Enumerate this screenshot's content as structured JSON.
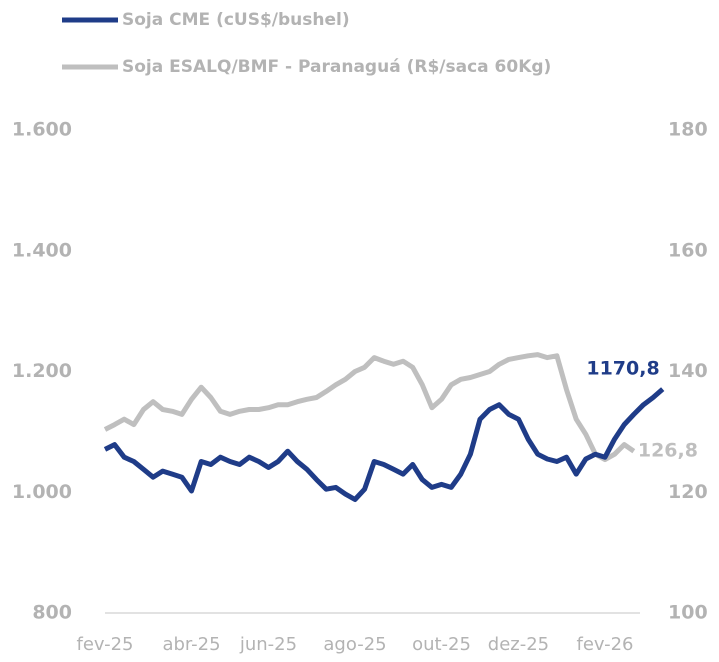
{
  "chart_data": {
    "type": "line",
    "categories": [
      "fev-25",
      null,
      null,
      null,
      null,
      null,
      null,
      null,
      null,
      "abr-25",
      null,
      null,
      null,
      null,
      null,
      null,
      null,
      "jun-25",
      null,
      null,
      null,
      null,
      null,
      null,
      null,
      null,
      "ago-25",
      null,
      null,
      null,
      null,
      null,
      null,
      null,
      null,
      "out-25",
      null,
      null,
      null,
      null,
      null,
      null,
      null,
      "dez-25",
      null,
      null,
      null,
      null,
      null,
      null,
      null,
      null,
      "fev-26",
      null,
      null,
      null,
      null,
      null,
      null
    ],
    "series": [
      {
        "name": "Soja CME (cUS$/bushel)",
        "color": "#1f3c88",
        "axis": "y",
        "values": [
          1071,
          1079,
          1058,
          1051,
          1038,
          1025,
          1035,
          1030,
          1025,
          1002,
          1051,
          1046,
          1058,
          1051,
          1046,
          1058,
          1051,
          1041,
          1051,
          1068,
          1051,
          1038,
          1021,
          1005,
          1008,
          997,
          988,
          1005,
          1051,
          1046,
          1038,
          1030,
          1046,
          1021,
          1008,
          1013,
          1008,
          1030,
          1063,
          1121,
          1137,
          1145,
          1129,
          1121,
          1088,
          1063,
          1055,
          1051,
          1058,
          1030,
          1055,
          1063,
          1058,
          1088,
          1112,
          1129,
          1145,
          1157,
          1170.8
        ],
        "value_labels": [
          null,
          null,
          null,
          null,
          null,
          null,
          null,
          null,
          null,
          null,
          null,
          null,
          null,
          null,
          null,
          null,
          null,
          null,
          null,
          null,
          null,
          null,
          null,
          null,
          null,
          null,
          null,
          null,
          null,
          null,
          null,
          null,
          null,
          null,
          null,
          null,
          null,
          null,
          null,
          null,
          null,
          null,
          null,
          null,
          null,
          null,
          null,
          null,
          null,
          null,
          null,
          null,
          null,
          null,
          null,
          null,
          null,
          null,
          "1170,8"
        ]
      },
      {
        "name": "Soja ESALQ/BMF - Paranaguá (R$/saca 60Kg)",
        "color": "#bfbfbf",
        "axis": "y2",
        "values": [
          130.4,
          131.2,
          132.1,
          131.2,
          133.7,
          135.0,
          133.7,
          133.4,
          132.9,
          135.4,
          137.4,
          135.7,
          133.4,
          132.9,
          133.4,
          133.7,
          133.7,
          134.0,
          134.5,
          134.5,
          135.0,
          135.4,
          135.7,
          136.7,
          137.8,
          138.7,
          140.0,
          140.7,
          142.3,
          141.7,
          141.2,
          141.7,
          140.7,
          137.8,
          134.0,
          135.4,
          137.8,
          138.7,
          139.0,
          139.5,
          140.0,
          141.2,
          142.0,
          142.3,
          142.6,
          142.8,
          142.3,
          142.6,
          137.0,
          132.1,
          129.6,
          126.3,
          125.4,
          126.3,
          127.9,
          126.8,
          null,
          null,
          null
        ],
        "value_labels": [
          null,
          null,
          null,
          null,
          null,
          null,
          null,
          null,
          null,
          null,
          null,
          null,
          null,
          null,
          null,
          null,
          null,
          null,
          null,
          null,
          null,
          null,
          null,
          null,
          null,
          null,
          null,
          null,
          null,
          null,
          null,
          null,
          null,
          null,
          null,
          null,
          null,
          null,
          null,
          null,
          null,
          null,
          null,
          null,
          null,
          null,
          null,
          null,
          null,
          null,
          null,
          null,
          null,
          null,
          null,
          "126,8",
          null,
          null,
          null
        ]
      }
    ],
    "ylim": [
      800,
      1600
    ],
    "yticks": [
      {
        "value": 800,
        "label": "800"
      },
      {
        "value": 1000,
        "label": "1.000"
      },
      {
        "value": 1200,
        "label": "1.200"
      },
      {
        "value": 1400,
        "label": "1.400"
      },
      {
        "value": 1600,
        "label": "1.600"
      }
    ],
    "y2lim": [
      100,
      180
    ],
    "y2ticks": [
      100,
      120,
      140,
      160,
      180
    ],
    "grid": false,
    "legend": "top-left"
  }
}
